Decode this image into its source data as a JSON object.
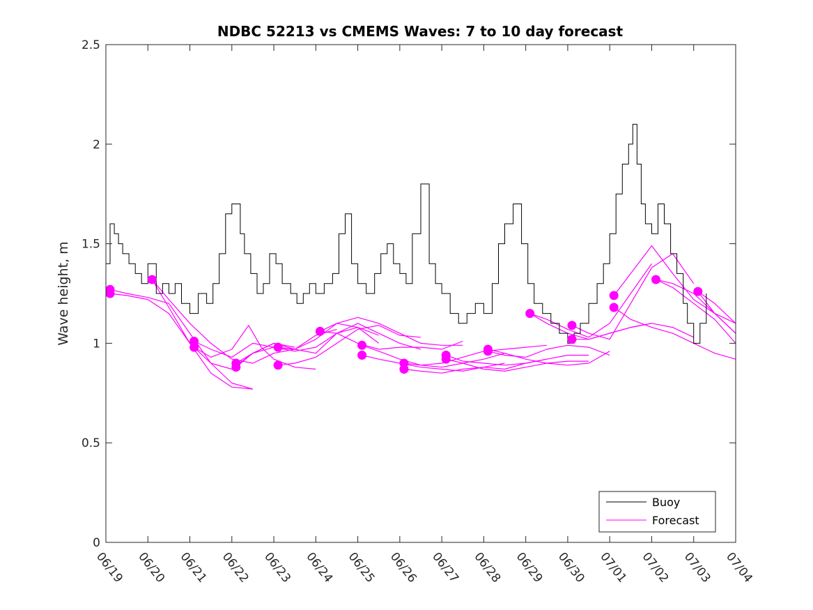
{
  "chart_data": {
    "type": "line",
    "title": "NDBC 52213 vs CMEMS Waves: 7 to 10 day forecast",
    "xlabel": "",
    "ylabel": "Wave height, m",
    "xlim": [
      0,
      15
    ],
    "ylim": [
      0,
      2.5
    ],
    "x_ticks": [
      "06/19",
      "06/20",
      "06/21",
      "06/22",
      "06/23",
      "06/24",
      "06/25",
      "06/26",
      "06/27",
      "06/28",
      "06/29",
      "06/30",
      "07/01",
      "07/02",
      "07/03",
      "07/04"
    ],
    "y_ticks": [
      "0",
      "0.5",
      "1",
      "1.5",
      "2",
      "2.5"
    ],
    "legend_position": "bottom-right",
    "grid": false,
    "colors": {
      "buoy": "#000000",
      "forecast": "#ff00ff"
    },
    "legend": [
      {
        "label": "Buoy",
        "color": "#000000"
      },
      {
        "label": "Forecast",
        "color": "#ff00ff"
      }
    ],
    "buoy": {
      "x": [
        0.0,
        0.1,
        0.2,
        0.3,
        0.4,
        0.55,
        0.7,
        0.85,
        1.0,
        1.2,
        1.35,
        1.5,
        1.65,
        1.8,
        2.0,
        2.2,
        2.4,
        2.55,
        2.7,
        2.85,
        3.0,
        3.2,
        3.3,
        3.45,
        3.6,
        3.75,
        3.9,
        4.05,
        4.2,
        4.4,
        4.55,
        4.7,
        4.85,
        5.0,
        5.2,
        5.4,
        5.55,
        5.7,
        5.85,
        6.0,
        6.2,
        6.4,
        6.55,
        6.7,
        6.85,
        7.0,
        7.15,
        7.3,
        7.5,
        7.7,
        7.85,
        8.0,
        8.2,
        8.4,
        8.6,
        8.8,
        9.0,
        9.2,
        9.35,
        9.5,
        9.7,
        9.9,
        10.05,
        10.2,
        10.4,
        10.6,
        10.8,
        11.0,
        11.15,
        11.3,
        11.5,
        11.7,
        11.85,
        12.0,
        12.15,
        12.3,
        12.45,
        12.55,
        12.65,
        12.75,
        12.85,
        13.0,
        13.15,
        13.3,
        13.45,
        13.6,
        13.75,
        13.85,
        14.0,
        14.15,
        14.3
      ],
      "y": [
        1.4,
        1.6,
        1.55,
        1.5,
        1.45,
        1.4,
        1.35,
        1.3,
        1.4,
        1.25,
        1.3,
        1.25,
        1.3,
        1.2,
        1.15,
        1.25,
        1.2,
        1.3,
        1.45,
        1.65,
        1.7,
        1.55,
        1.45,
        1.35,
        1.25,
        1.3,
        1.45,
        1.4,
        1.3,
        1.25,
        1.2,
        1.25,
        1.3,
        1.25,
        1.3,
        1.35,
        1.55,
        1.65,
        1.4,
        1.3,
        1.25,
        1.35,
        1.45,
        1.5,
        1.4,
        1.35,
        1.3,
        1.55,
        1.8,
        1.4,
        1.3,
        1.25,
        1.15,
        1.1,
        1.15,
        1.2,
        1.15,
        1.3,
        1.5,
        1.6,
        1.7,
        1.5,
        1.3,
        1.2,
        1.15,
        1.1,
        1.05,
        1.0,
        1.05,
        1.1,
        1.2,
        1.3,
        1.4,
        1.55,
        1.75,
        1.9,
        2.0,
        2.1,
        1.9,
        1.7,
        1.6,
        1.55,
        1.7,
        1.6,
        1.45,
        1.35,
        1.2,
        1.1,
        1.0,
        1.1,
        1.25
      ]
    },
    "forecast_markers": {
      "x": [
        0.1,
        0.1,
        1.1,
        2.1,
        2.1,
        3.1,
        3.1,
        4.1,
        4.1,
        5.1,
        6.1,
        6.1,
        7.1,
        7.1,
        8.1,
        8.1,
        9.1,
        9.1,
        10.1,
        11.1,
        11.1,
        12.1,
        12.1,
        13.1,
        14.1
      ],
      "y": [
        1.27,
        1.25,
        1.32,
        1.01,
        0.98,
        0.9,
        0.88,
        0.98,
        0.89,
        1.06,
        0.99,
        0.94,
        0.9,
        0.87,
        0.94,
        0.92,
        0.97,
        0.96,
        1.15,
        1.09,
        1.02,
        1.24,
        1.18,
        1.32,
        1.26
      ]
    },
    "forecast_series": [
      {
        "x": [
          0.1,
          0.5,
          1.0,
          1.5,
          2.0,
          2.5,
          3.0,
          3.5
        ],
        "y": [
          1.27,
          1.25,
          1.23,
          1.2,
          1.05,
          0.9,
          0.8,
          0.77
        ]
      },
      {
        "x": [
          0.1,
          0.5,
          1.0,
          1.5,
          2.0,
          2.5,
          3.0,
          3.5
        ],
        "y": [
          1.25,
          1.24,
          1.22,
          1.15,
          1.0,
          0.85,
          0.78,
          0.77
        ]
      },
      {
        "x": [
          1.1,
          1.5,
          2.0,
          2.5,
          3.0,
          3.5,
          4.0,
          4.5
        ],
        "y": [
          1.32,
          1.22,
          1.1,
          1.0,
          0.92,
          0.9,
          0.95,
          0.97
        ]
      },
      {
        "x": [
          1.1,
          1.5,
          2.0,
          2.5,
          3.0,
          3.5,
          4.0,
          4.5
        ],
        "y": [
          1.32,
          1.18,
          1.0,
          0.9,
          0.87,
          0.95,
          1.0,
          0.98
        ]
      },
      {
        "x": [
          2.1,
          2.5,
          3.0,
          3.5,
          4.0,
          4.5,
          5.0,
          5.5
        ],
        "y": [
          1.01,
          0.97,
          0.93,
          1.0,
          0.98,
          0.97,
          1.04,
          1.07
        ]
      },
      {
        "x": [
          2.1,
          2.5,
          3.0,
          3.4,
          3.7,
          4.0,
          4.5,
          5.0
        ],
        "y": [
          0.98,
          0.93,
          0.97,
          1.09,
          0.98,
          0.92,
          0.88,
          0.87
        ]
      },
      {
        "x": [
          3.1,
          3.5,
          4.0,
          4.5,
          5.0,
          5.5,
          6.0,
          6.5
        ],
        "y": [
          0.9,
          0.95,
          1.0,
          0.97,
          1.02,
          1.1,
          1.08,
          1.0
        ]
      },
      {
        "x": [
          3.1,
          3.5,
          4.0,
          4.5,
          5.0,
          5.5,
          6.0,
          6.5
        ],
        "y": [
          0.88,
          0.95,
          0.98,
          0.96,
          0.98,
          1.05,
          1.08,
          1.04
        ]
      },
      {
        "x": [
          4.1,
          4.5,
          5.0,
          5.5,
          6.0,
          6.5,
          7.0,
          7.5
        ],
        "y": [
          0.98,
          0.97,
          0.95,
          1.05,
          1.1,
          1.05,
          1.0,
          0.97
        ]
      },
      {
        "x": [
          4.1,
          4.5,
          5.0,
          5.5,
          6.0,
          6.5,
          7.0,
          7.5
        ],
        "y": [
          0.89,
          0.9,
          0.93,
          1.0,
          1.07,
          1.09,
          1.04,
          1.03
        ]
      },
      {
        "x": [
          5.1,
          5.5,
          6.0,
          6.5,
          7.0,
          7.5,
          8.0,
          8.5
        ],
        "y": [
          1.06,
          1.1,
          1.13,
          1.1,
          1.05,
          1.0,
          0.99,
          0.99
        ]
      },
      {
        "x": [
          5.1,
          5.5,
          6.0,
          6.5,
          7.0,
          7.5,
          8.0,
          8.5
        ],
        "y": [
          1.06,
          1.05,
          1.0,
          0.97,
          0.98,
          0.98,
          0.97,
          1.01
        ]
      },
      {
        "x": [
          6.1,
          6.5,
          7.0,
          7.5,
          8.0,
          8.5,
          9.0,
          9.5
        ],
        "y": [
          0.99,
          0.96,
          0.92,
          0.89,
          0.88,
          0.9,
          0.92,
          0.95
        ]
      },
      {
        "x": [
          6.1,
          6.5,
          7.0,
          7.5,
          8.0,
          8.5,
          9.0,
          9.5
        ],
        "y": [
          0.94,
          0.92,
          0.9,
          0.88,
          0.87,
          0.86,
          0.88,
          0.9
        ]
      },
      {
        "x": [
          7.1,
          7.5,
          8.0,
          8.5,
          9.0,
          9.5,
          10.0,
          10.5
        ],
        "y": [
          0.9,
          0.89,
          0.9,
          0.93,
          0.96,
          0.97,
          0.98,
          0.99
        ]
      },
      {
        "x": [
          7.1,
          7.5,
          8.0,
          8.5,
          9.0,
          9.5,
          10.0,
          10.5
        ],
        "y": [
          0.87,
          0.86,
          0.85,
          0.87,
          0.88,
          0.87,
          0.9,
          0.92
        ]
      },
      {
        "x": [
          8.1,
          8.5,
          9.0,
          9.5,
          10.0,
          10.5,
          11.0,
          11.5
        ],
        "y": [
          0.94,
          0.91,
          0.9,
          0.89,
          0.9,
          0.92,
          0.94,
          0.94
        ]
      },
      {
        "x": [
          8.1,
          8.5,
          9.0,
          9.5,
          10.0,
          10.5,
          11.0,
          11.5
        ],
        "y": [
          0.92,
          0.9,
          0.87,
          0.86,
          0.88,
          0.9,
          0.91,
          0.91
        ]
      },
      {
        "x": [
          9.1,
          9.5,
          10.0,
          10.5,
          11.0,
          11.5,
          12.0
        ],
        "y": [
          0.97,
          0.95,
          0.92,
          0.9,
          0.89,
          0.9,
          0.96
        ]
      },
      {
        "x": [
          9.1,
          9.5,
          10.0,
          10.5,
          11.0,
          11.5,
          12.0
        ],
        "y": [
          0.96,
          0.94,
          0.93,
          0.97,
          0.99,
          0.98,
          0.94
        ]
      },
      {
        "x": [
          10.1,
          10.5,
          11.0,
          11.5,
          12.0,
          12.5,
          13.0
        ],
        "y": [
          1.15,
          1.1,
          1.05,
          1.02,
          1.05,
          1.08,
          1.1
        ]
      },
      {
        "x": [
          10.1,
          10.5,
          11.0,
          11.5,
          12.0,
          12.5,
          13.0
        ],
        "y": [
          1.15,
          1.12,
          1.07,
          1.03,
          1.1,
          1.25,
          1.4
        ]
      },
      {
        "x": [
          11.1,
          11.5,
          12.0,
          12.5,
          13.0,
          13.5,
          14.0
        ],
        "y": [
          1.09,
          1.05,
          1.02,
          1.2,
          1.38,
          1.45,
          1.3
        ]
      },
      {
        "x": [
          11.1,
          11.5,
          12.0,
          12.5,
          13.0,
          13.5,
          14.0
        ],
        "y": [
          1.02,
          1.02,
          1.05,
          1.08,
          1.1,
          1.08,
          1.03
        ]
      },
      {
        "x": [
          12.1,
          12.5,
          13.0,
          13.5,
          14.0,
          14.5,
          15.0
        ],
        "y": [
          1.24,
          1.35,
          1.49,
          1.35,
          1.22,
          1.15,
          1.1
        ]
      },
      {
        "x": [
          12.1,
          12.5,
          13.0,
          13.5,
          14.0,
          14.5,
          15.0
        ],
        "y": [
          1.18,
          1.12,
          1.08,
          1.05,
          1.0,
          0.95,
          0.92
        ]
      },
      {
        "x": [
          13.1,
          13.5,
          14.0,
          14.5,
          15.0
        ],
        "y": [
          1.32,
          1.3,
          1.25,
          1.15,
          1.05
        ]
      },
      {
        "x": [
          13.1,
          13.5,
          14.0,
          14.5,
          15.0
        ],
        "y": [
          1.32,
          1.28,
          1.2,
          1.12,
          1.0
        ]
      },
      {
        "x": [
          14.1,
          14.5,
          15.0
        ],
        "y": [
          1.26,
          1.2,
          1.1
        ]
      },
      {
        "x": [
          14.1,
          14.5,
          15.0
        ],
        "y": [
          1.26,
          1.15,
          1.05
        ]
      }
    ]
  }
}
